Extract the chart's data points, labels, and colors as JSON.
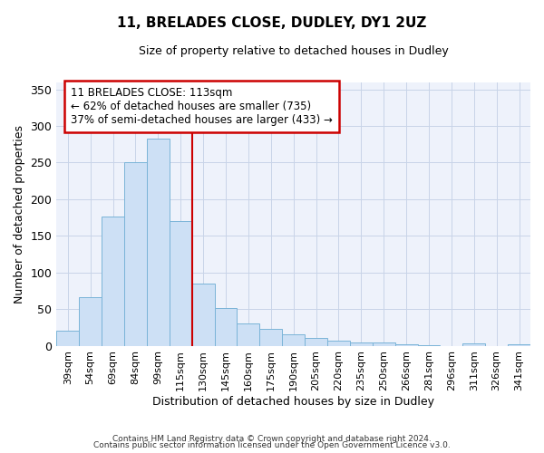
{
  "title": "11, BRELADES CLOSE, DUDLEY, DY1 2UZ",
  "subtitle": "Size of property relative to detached houses in Dudley",
  "xlabel": "Distribution of detached houses by size in Dudley",
  "ylabel": "Number of detached properties",
  "bar_labels": [
    "39sqm",
    "54sqm",
    "69sqm",
    "84sqm",
    "99sqm",
    "115sqm",
    "130sqm",
    "145sqm",
    "160sqm",
    "175sqm",
    "190sqm",
    "205sqm",
    "220sqm",
    "235sqm",
    "250sqm",
    "266sqm",
    "281sqm",
    "296sqm",
    "311sqm",
    "326sqm",
    "341sqm"
  ],
  "bar_values": [
    20,
    66,
    176,
    250,
    283,
    170,
    85,
    52,
    30,
    23,
    15,
    10,
    7,
    5,
    5,
    2,
    1,
    0,
    3,
    0,
    2
  ],
  "bar_color": "#cde0f5",
  "bar_edge_color": "#7ab4d8",
  "vline_x": 5.5,
  "vline_color": "#cc0000",
  "ylim": [
    0,
    360
  ],
  "yticks": [
    0,
    50,
    100,
    150,
    200,
    250,
    300,
    350
  ],
  "annotation_title": "11 BRELADES CLOSE: 113sqm",
  "annotation_line1": "← 62% of detached houses are smaller (735)",
  "annotation_line2": "37% of semi-detached houses are larger (433) →",
  "annotation_box_facecolor": "#ffffff",
  "annotation_box_edgecolor": "#cc0000",
  "footer1": "Contains HM Land Registry data © Crown copyright and database right 2024.",
  "footer2": "Contains public sector information licensed under the Open Government Licence v3.0.",
  "plot_bg_color": "#eef2fb",
  "fig_bg_color": "#ffffff",
  "grid_color": "#c8d4e8"
}
